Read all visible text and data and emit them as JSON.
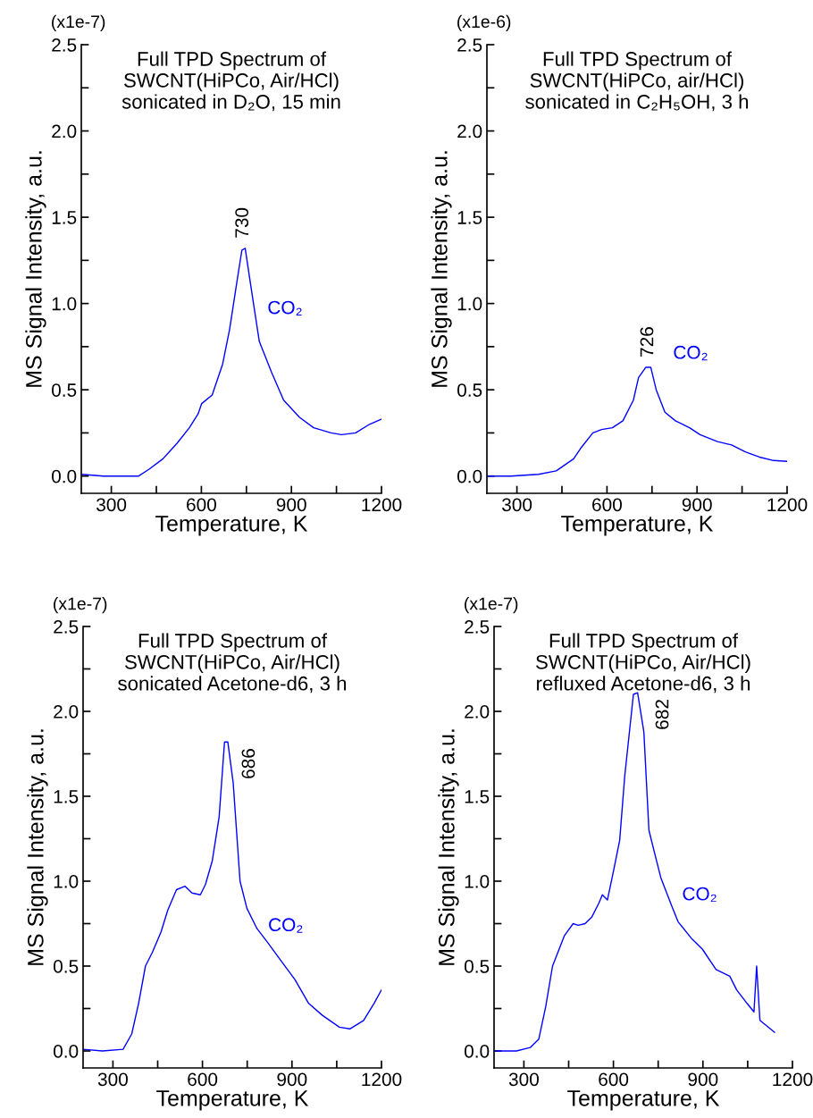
{
  "chart_data": [
    {
      "type": "line",
      "title": "Full TPD Spectrum of\nSWCNT(HiPCo, Air/HCl)\nsonicated in D₂O, 15 min",
      "xlabel": "Temperature, K",
      "ylabel": "MS Signal Intensity, a.u.",
      "xlim": [
        200,
        1200
      ],
      "ylim": [
        -0.1,
        2.5
      ],
      "xticks": [
        300,
        {
          "value": 450,
          "label": null
        },
        600,
        {
          "value": 750,
          "label": null
        },
        900,
        {
          "value": 1050,
          "label": null
        },
        1200
      ],
      "yticks": [
        {
          "value": 0,
          "label": "0.0"
        },
        {
          "value": 0.25,
          "label": null
        },
        {
          "value": 0.5,
          "label": "0.5"
        },
        {
          "value": 0.75,
          "label": null
        },
        {
          "value": 1.0,
          "label": "1.0"
        },
        {
          "value": 1.25,
          "label": null
        },
        {
          "value": 1.5,
          "label": "1.5"
        },
        {
          "value": 1.75,
          "label": null
        },
        {
          "value": 2.0,
          "label": "2.0"
        },
        {
          "value": 2.25,
          "label": null
        },
        {
          "value": 2.5,
          "label": "2.5"
        }
      ],
      "grid": false,
      "legend": false,
      "annotations": [
        "(x1e-7)",
        {
          "text": "730",
          "x": 740,
          "y": 1.32
        }
      ],
      "series": [
        {
          "name": "CO₂",
          "color": "#0000ff",
          "x": [
            200,
            274,
            333,
            391,
            426,
            472,
            519,
            560,
            589,
            601,
            636,
            671,
            694,
            717,
            735,
            746,
            764,
            793,
            834,
            874,
            927,
            974,
            1032,
            1067,
            1114,
            1160,
            1200
          ],
          "values": [
            0.01,
            0.0,
            0.0,
            0.0,
            0.04,
            0.1,
            0.19,
            0.28,
            0.36,
            0.42,
            0.47,
            0.65,
            0.85,
            1.11,
            1.31,
            1.32,
            1.11,
            0.78,
            0.6,
            0.44,
            0.34,
            0.28,
            0.25,
            0.24,
            0.25,
            0.3,
            0.33
          ]
        }
      ]
    },
    {
      "type": "line",
      "title": "Full TPD Spectrum of\nSWCNT(HiPCo, air/HCl)\nsonicated in C₂H₅OH, 3 h",
      "xlabel": "Temperature, K",
      "ylabel": "MS Signal Intensity, a.u.",
      "xlim": [
        200,
        1200
      ],
      "ylim": [
        -0.1,
        2.5
      ],
      "xticks": [
        300,
        {
          "value": 450,
          "label": null
        },
        600,
        {
          "value": 750,
          "label": null
        },
        900,
        {
          "value": 1050,
          "label": null
        },
        1200
      ],
      "yticks": [
        {
          "value": 0,
          "label": "0.0"
        },
        {
          "value": 0.25,
          "label": null
        },
        {
          "value": 0.5,
          "label": "0.5"
        },
        {
          "value": 0.75,
          "label": null
        },
        {
          "value": 1.0,
          "label": "1.0"
        },
        {
          "value": 1.25,
          "label": null
        },
        {
          "value": 1.5,
          "label": "1.5"
        },
        {
          "value": 1.75,
          "label": null
        },
        {
          "value": 2.0,
          "label": "2.0"
        },
        {
          "value": 2.25,
          "label": null
        },
        {
          "value": 2.5,
          "label": "2.5"
        }
      ],
      "grid": false,
      "legend": false,
      "annotations": [
        "(x1e-6)",
        {
          "text": "726",
          "x": 738,
          "y": 0.63
        }
      ],
      "series": [
        {
          "name": "CO₂",
          "color": "#0000ff",
          "x": [
            200,
            279,
            372,
            431,
            489,
            512,
            553,
            582,
            618,
            653,
            688,
            705,
            729,
            746,
            764,
            793,
            828,
            875,
            910,
            968,
            1015,
            1061,
            1108,
            1155,
            1200
          ],
          "values": [
            0.0,
            0.0,
            0.01,
            0.03,
            0.1,
            0.16,
            0.25,
            0.27,
            0.28,
            0.32,
            0.44,
            0.57,
            0.63,
            0.63,
            0.5,
            0.37,
            0.32,
            0.28,
            0.24,
            0.2,
            0.18,
            0.14,
            0.11,
            0.09,
            0.085
          ]
        }
      ]
    },
    {
      "type": "line",
      "title": "Full TPD Spectrum of\nSWCNT(HiPCo, Air/HCl)\nsonicated Acetone-d6, 3 h",
      "xlabel": "Temperature, K",
      "ylabel": "MS Signal Intensity, a.u.",
      "xlim": [
        200,
        1200
      ],
      "ylim": [
        -0.1,
        2.5
      ],
      "xticks": [
        300,
        {
          "value": 450,
          "label": null
        },
        600,
        {
          "value": 750,
          "label": null
        },
        900,
        {
          "value": 1050,
          "label": null
        },
        1200
      ],
      "yticks": [
        {
          "value": 0,
          "label": "0.0"
        },
        {
          "value": 0.25,
          "label": null
        },
        {
          "value": 0.5,
          "label": "0.5"
        },
        {
          "value": 0.75,
          "label": null
        },
        {
          "value": 1.0,
          "label": "1.0"
        },
        {
          "value": 1.25,
          "label": null
        },
        {
          "value": 1.5,
          "label": "1.5"
        },
        {
          "value": 1.75,
          "label": null
        },
        {
          "value": 2.0,
          "label": "2.0"
        },
        {
          "value": 2.25,
          "label": null
        },
        {
          "value": 2.5,
          "label": "2.5"
        }
      ],
      "grid": false,
      "legend": false,
      "annotations": [
        "(x1e-7)",
        {
          "text": "686",
          "x": 680,
          "y": 1.82
        }
      ],
      "series": [
        {
          "name": "CO₂",
          "color": "#0000ff",
          "x": [
            200,
            265,
            334,
            363,
            386,
            409,
            432,
            461,
            484,
            513,
            542,
            565,
            593,
            610,
            633,
            656,
            674,
            685,
            703,
            726,
            749,
            783,
            818,
            864,
            910,
            956,
            1002,
            1059,
            1094,
            1140,
            1175,
            1200
          ],
          "values": [
            0.01,
            0.0,
            0.01,
            0.1,
            0.28,
            0.5,
            0.58,
            0.7,
            0.83,
            0.95,
            0.97,
            0.93,
            0.92,
            0.98,
            1.12,
            1.38,
            1.82,
            1.82,
            1.58,
            1.0,
            0.84,
            0.72,
            0.64,
            0.53,
            0.42,
            0.28,
            0.21,
            0.14,
            0.13,
            0.18,
            0.28,
            0.36
          ]
        }
      ]
    },
    {
      "type": "line",
      "title": "Full TPD Spectrum of\nSWCNT(HiPCo, Air/HCl)\nrefluxed Acetone-d6, 3 h",
      "xlabel": "Temperature, K",
      "ylabel": "MS Signal Intensity, a.u.",
      "xlim": [
        200,
        1200
      ],
      "ylim": [
        -0.1,
        2.5
      ],
      "xticks": [
        300,
        {
          "value": 450,
          "label": null
        },
        600,
        {
          "value": 750,
          "label": null
        },
        900,
        {
          "value": 1050,
          "label": null
        },
        1200
      ],
      "yticks": [
        {
          "value": 0,
          "label": "0.0"
        },
        {
          "value": 0.25,
          "label": null
        },
        {
          "value": 0.5,
          "label": "0.5"
        },
        {
          "value": 0.75,
          "label": null
        },
        {
          "value": 1.0,
          "label": "1.0"
        },
        {
          "value": 1.25,
          "label": null
        },
        {
          "value": 1.5,
          "label": "1.5"
        },
        {
          "value": 1.75,
          "label": null
        },
        {
          "value": 2.0,
          "label": "2.0"
        },
        {
          "value": 2.25,
          "label": null
        },
        {
          "value": 2.5,
          "label": "2.5"
        }
      ],
      "grid": false,
      "legend": false,
      "annotations": [
        "(x1e-7)",
        {
          "text": "682",
          "x": 681,
          "y": 2.11
        }
      ],
      "series": [
        {
          "name": "CO₂",
          "color": "#0000ff",
          "x": [
            200,
            275,
            321,
            350,
            373,
            396,
            436,
            465,
            482,
            505,
            528,
            551,
            563,
            580,
            598,
            621,
            638,
            667,
            681,
            702,
            719,
            736,
            759,
            794,
            817,
            863,
            898,
            944,
            990,
            1013,
            1048,
            1071,
            1080,
            1091,
            1140
          ],
          "values": [
            0.0,
            0.0,
            0.02,
            0.07,
            0.26,
            0.5,
            0.68,
            0.75,
            0.74,
            0.75,
            0.79,
            0.87,
            0.92,
            0.89,
            1.04,
            1.24,
            1.62,
            2.1,
            2.11,
            1.88,
            1.3,
            1.18,
            1.02,
            0.86,
            0.76,
            0.66,
            0.6,
            0.48,
            0.44,
            0.36,
            0.28,
            0.23,
            0.5,
            0.18,
            0.11
          ]
        }
      ]
    }
  ]
}
